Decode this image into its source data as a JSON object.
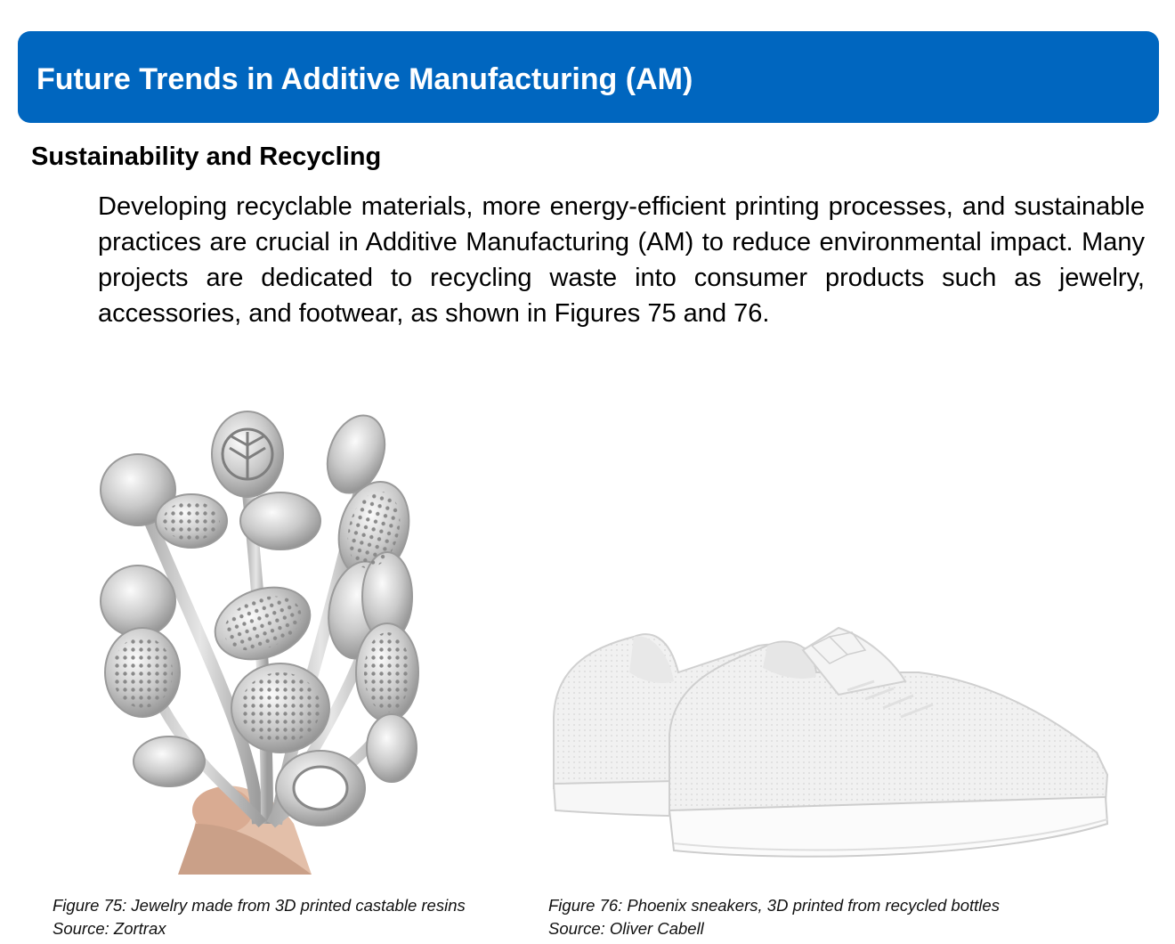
{
  "header": {
    "title": "Future Trends in Additive Manufacturing (AM)"
  },
  "section": {
    "heading": "Sustainability and Recycling",
    "paragraph": "Developing recyclable materials, more energy-efficient printing processes, and sustainable practices are crucial in Additive Manufacturing (AM) to reduce environmental impact. Many projects are dedicated to recycling waste into consumer products such as jewelry, accessories, and footwear, as shown in Figures 75 and 76."
  },
  "figures": [
    {
      "caption": "Figure 75: Jewelry made from 3D printed castable resins",
      "source": "Source: Zortrax",
      "depicts": "jewelry-icon"
    },
    {
      "caption": "Figure 76: Phoenix sneakers, 3D printed from recycled bottles",
      "source": "Source: Oliver Cabell",
      "depicts": "sneaker-icon"
    }
  ]
}
